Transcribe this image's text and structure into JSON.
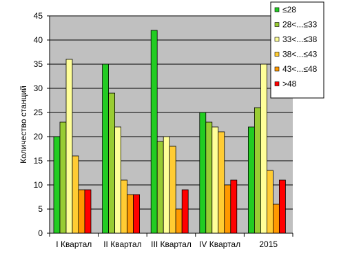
{
  "chart_data": {
    "type": "bar",
    "ylabel": "Количество станций",
    "xlabel": "",
    "title": "",
    "ylim": [
      0,
      45
    ],
    "ytick_step": 5,
    "grid": true,
    "legend_position": "top-right",
    "plot_background": "#c0c0c0",
    "categories": [
      "I Квартал",
      "II Квартал",
      "III Квартал",
      "IV Квартал",
      "2015"
    ],
    "series": [
      {
        "name": "≤28",
        "color": "#22cc22",
        "values": [
          20,
          35,
          42,
          25,
          22
        ]
      },
      {
        "name": "28<...≤33",
        "color": "#99cc33",
        "values": [
          23,
          29,
          19,
          23,
          26
        ]
      },
      {
        "name": "33<...≤38",
        "color": "#ffff99",
        "values": [
          36,
          22,
          20,
          22,
          35
        ]
      },
      {
        "name": "38<...≤43",
        "color": "#ffcc33",
        "values": [
          16,
          11,
          18,
          21,
          13
        ]
      },
      {
        "name": "43<...≤48",
        "color": "#ff9900",
        "values": [
          9,
          8,
          5,
          10,
          6
        ]
      },
      {
        "name": ">48",
        "color": "#ff0000",
        "values": [
          9,
          8,
          9,
          11,
          11
        ]
      }
    ]
  }
}
